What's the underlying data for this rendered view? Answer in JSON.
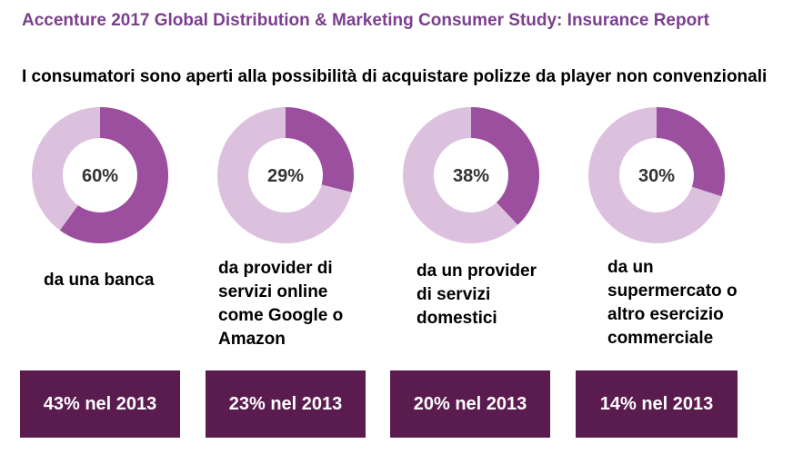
{
  "header": {
    "title": "Accenture 2017 Global Distribution & Marketing Consumer Study: Insurance Report",
    "subtitle": "I consumatori sono aperti alla possibilità di acquistare polizze da player non convenzionali"
  },
  "colors": {
    "accent": "#9b4f9e",
    "track": "#dcc1de",
    "badge_bg": "#5a1b4f",
    "title": "#7b3f8e"
  },
  "chart_data": [
    {
      "type": "pie",
      "value": 60,
      "label": "60%",
      "description": "da una banca",
      "previous": "43% nel 2013"
    },
    {
      "type": "pie",
      "value": 29,
      "label": "29%",
      "description": "da provider di\nservizi online\ncome Google o\nAmazon",
      "previous": "23% nel 2013"
    },
    {
      "type": "pie",
      "value": 38,
      "label": "38%",
      "description": "da un provider\ndi servizi\ndomestici",
      "previous": "20% nel 2013"
    },
    {
      "type": "pie",
      "value": 30,
      "label": "30%",
      "description": "da un\nsupermercato o\naltro esercizio\ncommerciale",
      "previous": "14% nel 2013"
    }
  ]
}
